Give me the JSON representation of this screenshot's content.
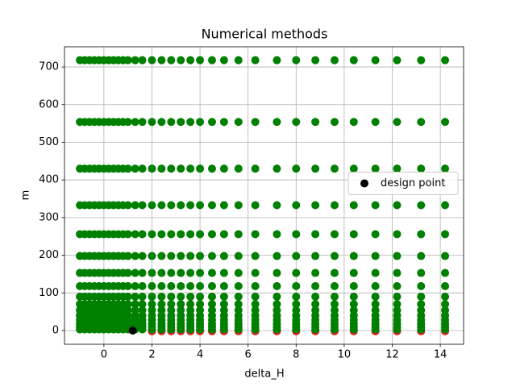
{
  "chart_data": {
    "type": "scatter",
    "title": "Numerical methods",
    "x_label": "delta_H",
    "y_label": "m",
    "xlim": [
      -1.64,
      14.97
    ],
    "ylim": [
      -36.4,
      753.7
    ],
    "xticks": [
      0,
      2,
      4,
      6,
      8,
      10,
      12,
      14
    ],
    "yticks": [
      0,
      100,
      200,
      300,
      400,
      500,
      600,
      700
    ],
    "grid": true,
    "legend": "center right",
    "series": [
      {
        "color": "#d62728",
        "x": [
          2,
          2.4,
          2.8,
          3.2,
          3.6,
          4,
          4.5,
          5,
          5.6,
          6.3,
          7.2,
          8,
          8.8,
          9.6,
          10.4,
          11.3,
          12.2,
          13.2,
          14.2
        ],
        "values": [
          -2,
          -2,
          -2,
          -2,
          -2,
          -2,
          -2,
          -2,
          -2,
          -2,
          -2,
          -2,
          -2,
          -2,
          -2,
          -2,
          -2,
          -2,
          -2
        ]
      },
      {
        "color": "#008000",
        "x_grid": [
          -1,
          -0.8,
          -0.6,
          -0.4,
          -0.2,
          0,
          0.2,
          0.4,
          0.6,
          0.8,
          1,
          1.3,
          1.6,
          2,
          2.4,
          2.8,
          3.2,
          3.6,
          4,
          4.5,
          5,
          5.6,
          6.3,
          7.2,
          8,
          8.8,
          9.6,
          10.4,
          11.3,
          12.2,
          13.2,
          14.2
        ],
        "y_grid": [
          718,
          554,
          430,
          333,
          256,
          198,
          153,
          118,
          90,
          70,
          54,
          40,
          28,
          18,
          10,
          3
        ]
      },
      {
        "name": "design point",
        "color": "#000000",
        "x": [
          1.2
        ],
        "values": [
          0
        ]
      }
    ]
  }
}
